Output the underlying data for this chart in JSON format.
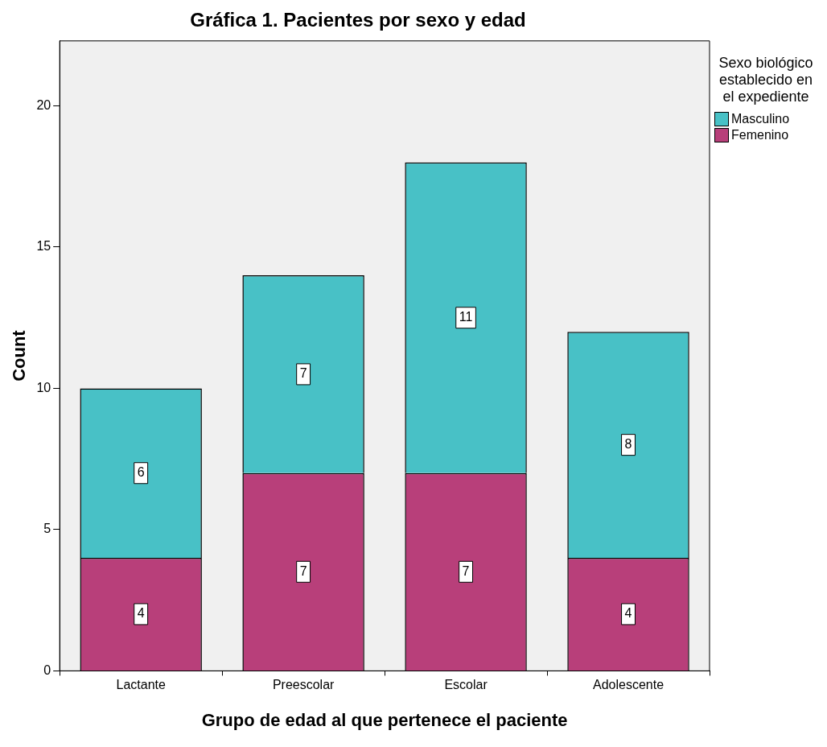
{
  "chart_data": {
    "type": "bar",
    "title": "Gráfica 1. Pacientes por sexo y edad",
    "xlabel": "Grupo de edad al que pertenece el paciente",
    "ylabel": "Count",
    "legend_title": "Sexo biológico establecido en el expediente",
    "categories": [
      "Lactante",
      "Preescolar",
      "Escolar",
      "Adolescente"
    ],
    "stacked": true,
    "data_labels": true,
    "legend": "right",
    "series": [
      {
        "name": "Femenino",
        "color": "#b83f7a",
        "values": [
          4,
          7,
          7,
          4
        ]
      },
      {
        "name": "Masculino",
        "color": "#48c1c6",
        "values": [
          6,
          7,
          11,
          8
        ]
      }
    ],
    "ylim": [
      0,
      22.3
    ],
    "yticks": [
      0,
      5,
      10,
      15,
      20
    ]
  }
}
